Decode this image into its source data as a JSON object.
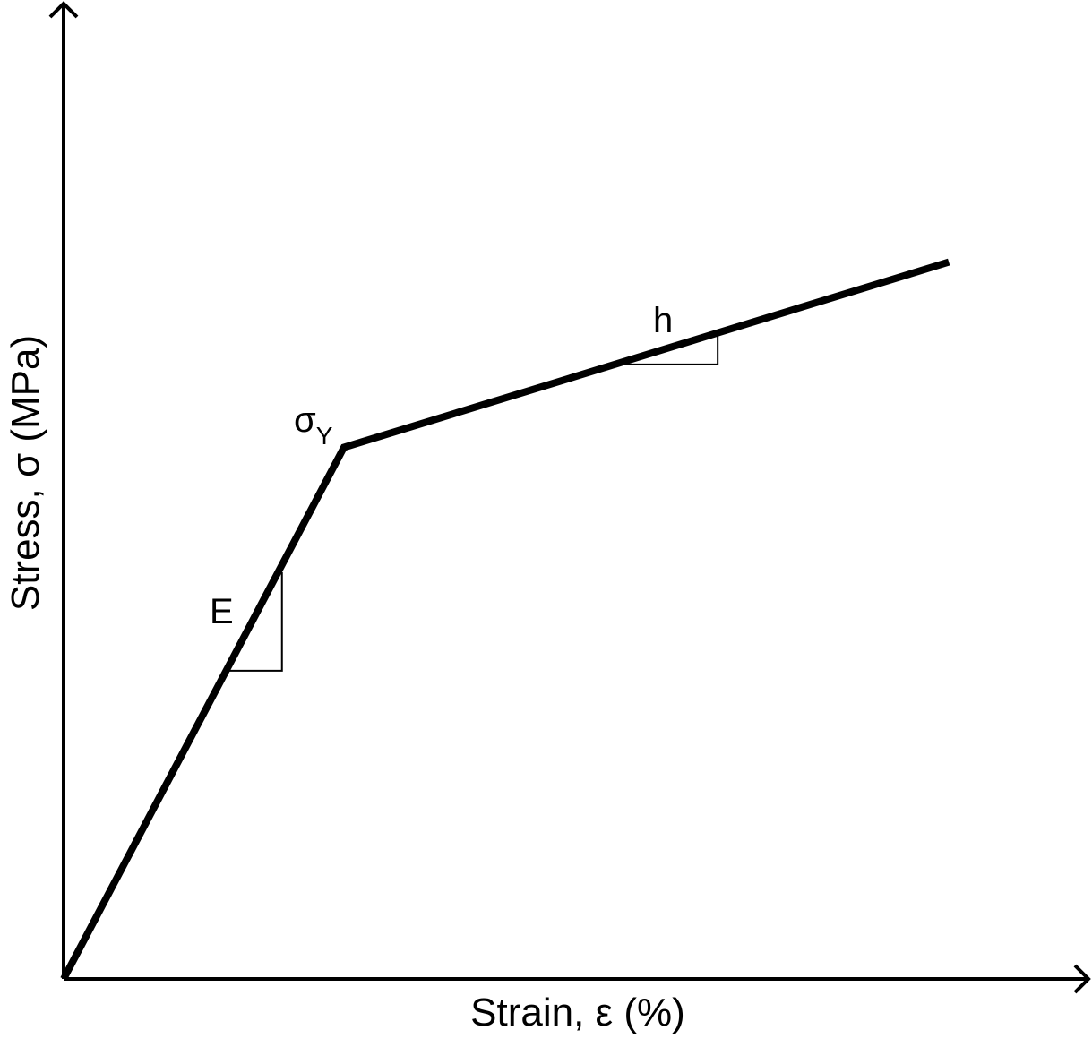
{
  "chart_data": {
    "type": "line",
    "title": "",
    "xlabel": "Strain, ε (%)",
    "ylabel": "Stress, σ (MPa)",
    "ticks": "none",
    "grid": false,
    "legend": "none",
    "xlim": [
      0,
      1.0
    ],
    "ylim": [
      0,
      1.0
    ],
    "series": [
      {
        "x": [
          0,
          0.285,
          0.9
        ],
        "y": [
          0,
          0.545,
          0.735
        ]
      }
    ],
    "annotations": {
      "elastic_slope": "E",
      "yield_symbol": "σ",
      "yield_subscript": "Y",
      "hardening_slope": "h"
    },
    "slope_triangles": [
      {
        "label": "E",
        "x": [
          0.167,
          0.222
        ],
        "y": [
          0.316,
          0.417
        ]
      },
      {
        "label": "h",
        "x": [
          0.559,
          0.665
        ],
        "y": [
          0.63,
          0.663
        ]
      }
    ]
  },
  "colors": {
    "line": "#000000",
    "background": "#ffffff"
  }
}
